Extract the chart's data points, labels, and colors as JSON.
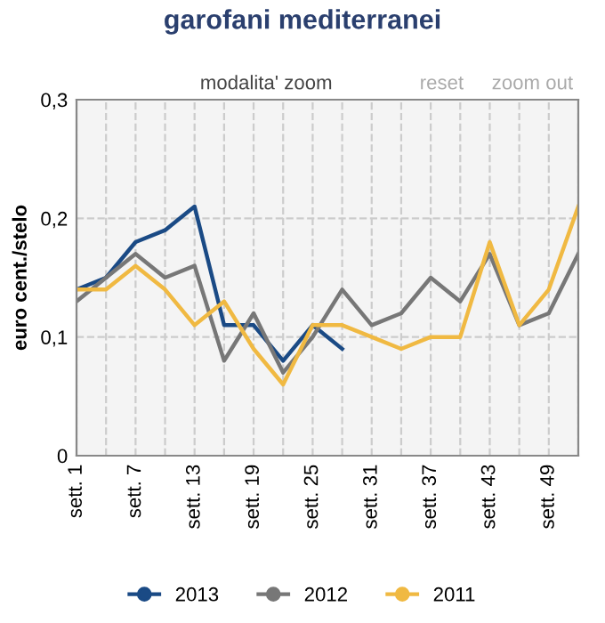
{
  "chart_data": {
    "type": "line",
    "title": "garofani mediterranei",
    "ylabel": "euro cent./stelo",
    "annotations": [
      "modalita' zoom",
      "reset",
      "zoom out"
    ],
    "categories": [
      "sett. 1",
      null,
      "sett. 7",
      null,
      "sett. 13",
      null,
      "sett. 19",
      null,
      "sett. 25",
      null,
      "sett. 31",
      null,
      "sett. 37",
      null,
      "sett. 43",
      null,
      "sett. 49",
      null
    ],
    "series": [
      {
        "name": "2013",
        "color": "#1a4a85",
        "values": [
          0.14,
          0.15,
          0.18,
          0.19,
          0.21,
          0.11,
          0.11,
          0.08,
          0.11,
          0.09,
          null,
          null,
          null,
          null,
          null,
          null,
          null,
          null
        ]
      },
      {
        "name": "2012",
        "color": "#777777",
        "values": [
          0.13,
          0.15,
          0.17,
          0.15,
          0.16,
          0.08,
          0.12,
          0.07,
          0.1,
          0.14,
          0.11,
          0.12,
          0.15,
          0.13,
          0.17,
          0.11,
          0.12,
          0.17
        ]
      },
      {
        "name": "2011",
        "color": "#f0b942",
        "values": [
          0.14,
          0.14,
          0.16,
          0.14,
          0.11,
          0.13,
          0.09,
          0.06,
          0.11,
          0.11,
          0.1,
          0.09,
          0.1,
          0.1,
          0.18,
          0.11,
          0.14,
          0.21
        ]
      }
    ],
    "ylim": [
      0,
      0.3
    ],
    "yticks": [
      {
        "value": 0,
        "label": "0"
      },
      {
        "value": 0.1,
        "label": "0,1"
      },
      {
        "value": 0.2,
        "label": "0,2"
      },
      {
        "value": 0.3,
        "label": "0,3"
      }
    ],
    "grid": true,
    "legend": "bottom",
    "line_style": "solid"
  }
}
